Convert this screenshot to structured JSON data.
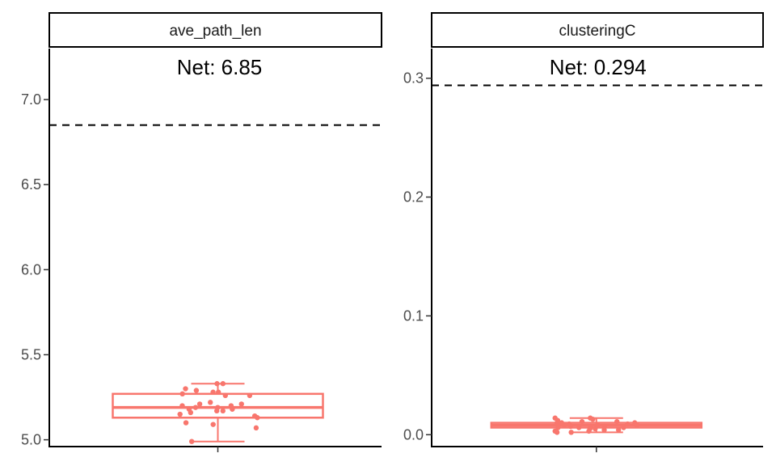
{
  "chart_data": [
    {
      "type": "boxplot",
      "panel": "ave_path_len",
      "title": "",
      "xlabel": "",
      "ylabel": "",
      "ylim": [
        4.96,
        7.3
      ],
      "yticks": [
        5.0,
        5.5,
        6.0,
        6.5,
        7.0
      ],
      "ytick_labels": [
        "5.0",
        "5.5",
        "6.0",
        "6.5",
        "7.0"
      ],
      "reference_line": {
        "value": 6.85,
        "label": "Net: 6.85",
        "style": "dashed"
      },
      "box": {
        "min": 4.99,
        "q1": 5.13,
        "median": 5.19,
        "q3": 5.27,
        "max": 5.33
      },
      "points": [
        5.33,
        5.33,
        5.3,
        5.29,
        5.28,
        5.28,
        5.27,
        5.26,
        5.26,
        5.22,
        5.21,
        5.21,
        5.2,
        5.2,
        5.19,
        5.19,
        5.18,
        5.18,
        5.17,
        5.17,
        5.16,
        5.15,
        5.14,
        5.13,
        5.1,
        5.09,
        5.07,
        4.99
      ],
      "color": "#F8766D"
    },
    {
      "type": "boxplot",
      "panel": "clusteringC",
      "title": "",
      "xlabel": "",
      "ylabel": "",
      "ylim": [
        -0.01,
        0.325
      ],
      "yticks": [
        0.0,
        0.1,
        0.2,
        0.3
      ],
      "ytick_labels": [
        "0.0",
        "0.1",
        "0.2",
        "0.3"
      ],
      "reference_line": {
        "value": 0.294,
        "label": "Net: 0.294",
        "style": "dashed"
      },
      "box": {
        "min": 0.002,
        "q1": 0.006,
        "median": 0.008,
        "q3": 0.01,
        "max": 0.014
      },
      "points": [
        0.014,
        0.014,
        0.013,
        0.012,
        0.011,
        0.011,
        0.01,
        0.01,
        0.01,
        0.009,
        0.009,
        0.008,
        0.008,
        0.008,
        0.007,
        0.007,
        0.007,
        0.006,
        0.006,
        0.006,
        0.005,
        0.005,
        0.004,
        0.004,
        0.003,
        0.003,
        0.002,
        0.002
      ],
      "color": "#F8766D"
    }
  ]
}
